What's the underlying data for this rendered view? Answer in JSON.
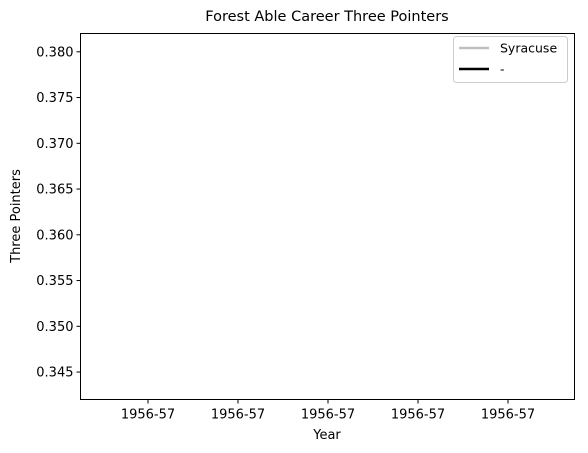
{
  "chart_data": {
    "type": "line",
    "title": "Forest Able Career Three Pointers",
    "xlabel": "Year",
    "ylabel": "Three Pointers",
    "x_tick_labels": [
      "1956-57",
      "1956-57",
      "1956-57",
      "1956-57",
      "1956-57"
    ],
    "y_ticks": [
      0.345,
      0.35,
      0.355,
      0.36,
      0.365,
      0.37,
      0.375,
      0.38
    ],
    "y_tick_labels": [
      "0.345",
      "0.350",
      "0.355",
      "0.360",
      "0.365",
      "0.370",
      "0.375",
      "0.380"
    ],
    "ylim": [
      0.342,
      0.382
    ],
    "grid": false,
    "legend_placement": "top-right",
    "series": [
      {
        "name": "Syracuse",
        "color": "#bfbfbf",
        "values": []
      },
      {
        "name": "-",
        "color": "#000000",
        "values": []
      }
    ]
  }
}
